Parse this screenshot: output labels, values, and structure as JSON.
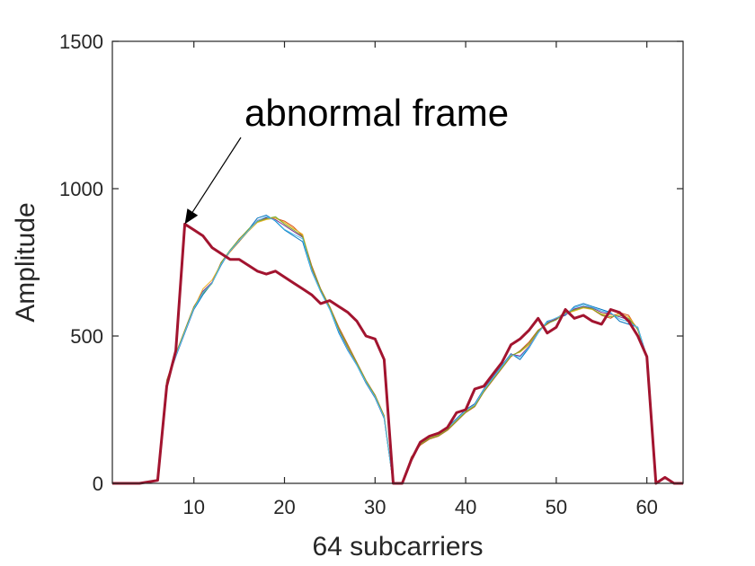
{
  "chart_data": {
    "type": "line",
    "xlabel": "64 subcarriers",
    "ylabel": "Amplitude",
    "xlim": [
      1,
      64
    ],
    "ylim": [
      0,
      1500
    ],
    "xticks": [
      10,
      20,
      30,
      40,
      50,
      60
    ],
    "yticks": [
      0,
      500,
      1000,
      1500
    ],
    "x": [
      1,
      2,
      3,
      4,
      5,
      6,
      7,
      8,
      9,
      10,
      11,
      12,
      13,
      14,
      15,
      16,
      17,
      18,
      19,
      20,
      21,
      22,
      23,
      24,
      25,
      26,
      27,
      28,
      29,
      30,
      31,
      32,
      33,
      34,
      35,
      36,
      37,
      38,
      39,
      40,
      41,
      42,
      43,
      44,
      45,
      46,
      47,
      48,
      49,
      50,
      51,
      52,
      53,
      54,
      55,
      56,
      57,
      58,
      59,
      60,
      61,
      62,
      63,
      64
    ],
    "annotation": {
      "text": "abnormal frame",
      "target_x": 9,
      "target_y": 880
    },
    "series": [
      {
        "color": "#0072BD",
        "width": 1,
        "values": [
          0,
          0,
          0,
          0,
          5,
          10,
          340,
          430,
          510,
          590,
          640,
          680,
          740,
          790,
          820,
          860,
          900,
          910,
          890,
          860,
          840,
          820,
          720,
          650,
          590,
          510,
          450,
          400,
          340,
          290,
          220,
          0,
          0,
          80,
          140,
          160,
          170,
          190,
          220,
          250,
          270,
          320,
          360,
          400,
          440,
          420,
          460,
          510,
          550,
          560,
          570,
          600,
          610,
          600,
          590,
          580,
          550,
          540,
          530,
          430,
          0,
          0,
          0,
          0
        ]
      },
      {
        "color": "#D95319",
        "width": 1,
        "values": [
          0,
          0,
          0,
          0,
          5,
          10,
          350,
          440,
          520,
          600,
          650,
          680,
          750,
          790,
          830,
          860,
          890,
          900,
          900,
          890,
          870,
          840,
          740,
          660,
          600,
          530,
          470,
          410,
          350,
          300,
          230,
          0,
          0,
          90,
          130,
          150,
          160,
          180,
          210,
          240,
          260,
          310,
          350,
          390,
          430,
          450,
          480,
          520,
          540,
          560,
          580,
          590,
          600,
          590,
          570,
          560,
          580,
          570,
          520,
          430,
          0,
          0,
          0,
          0
        ]
      },
      {
        "color": "#EDB120",
        "width": 1,
        "values": [
          0,
          0,
          0,
          0,
          5,
          10,
          345,
          435,
          515,
          595,
          660,
          690,
          745,
          785,
          820,
          855,
          885,
          895,
          900,
          885,
          865,
          845,
          730,
          655,
          595,
          520,
          460,
          405,
          345,
          295,
          225,
          0,
          0,
          85,
          135,
          155,
          165,
          185,
          215,
          245,
          265,
          315,
          355,
          395,
          435,
          445,
          470,
          515,
          545,
          560,
          575,
          585,
          595,
          590,
          575,
          570,
          575,
          565,
          525,
          430,
          0,
          0,
          0,
          0
        ]
      },
      {
        "color": "#7E2F8E",
        "width": 1,
        "values": [
          0,
          0,
          0,
          0,
          5,
          10,
          342,
          432,
          512,
          592,
          652,
          682,
          742,
          788,
          822,
          858,
          892,
          902,
          895,
          875,
          855,
          835,
          725,
          652,
          592,
          518,
          455,
          402,
          342,
          292,
          222,
          0,
          0,
          82,
          138,
          158,
          168,
          188,
          218,
          248,
          268,
          318,
          358,
          398,
          438,
          432,
          465,
          512,
          545,
          558,
          572,
          592,
          600,
          595,
          580,
          575,
          565,
          555,
          527,
          430,
          0,
          0,
          0,
          0
        ]
      },
      {
        "color": "#77AC30",
        "width": 1,
        "values": [
          0,
          0,
          0,
          0,
          5,
          10,
          348,
          438,
          518,
          598,
          645,
          678,
          748,
          792,
          828,
          862,
          888,
          898,
          905,
          880,
          860,
          838,
          735,
          658,
          598,
          525,
          465,
          408,
          348,
          298,
          228,
          0,
          0,
          88,
          132,
          152,
          162,
          182,
          212,
          242,
          262,
          312,
          352,
          392,
          432,
          448,
          475,
          518,
          542,
          555,
          578,
          588,
          598,
          592,
          572,
          565,
          570,
          560,
          522,
          430,
          0,
          0,
          0,
          0
        ]
      },
      {
        "color": "#4DBEEE",
        "width": 1,
        "values": [
          0,
          0,
          0,
          0,
          5,
          10,
          343,
          433,
          513,
          593,
          648,
          679,
          743,
          789,
          823,
          857,
          891,
          905,
          892,
          862,
          845,
          830,
          722,
          650,
          590,
          515,
          452,
          401,
          343,
          293,
          223,
          0,
          0,
          83,
          137,
          157,
          167,
          187,
          217,
          247,
          267,
          317,
          357,
          397,
          437,
          428,
          462,
          510,
          548,
          562,
          574,
          596,
          605,
          597,
          585,
          578,
          558,
          548,
          528,
          430,
          0,
          0,
          0,
          0
        ]
      },
      {
        "color": "#A2142F",
        "width": 3,
        "label": "abnormal frame",
        "values": [
          0,
          0,
          0,
          0,
          5,
          10,
          330,
          450,
          880,
          860,
          840,
          800,
          780,
          760,
          760,
          740,
          720,
          710,
          720,
          700,
          680,
          660,
          640,
          610,
          620,
          600,
          580,
          550,
          500,
          490,
          420,
          0,
          0,
          80,
          140,
          160,
          170,
          190,
          240,
          250,
          320,
          330,
          370,
          410,
          470,
          490,
          520,
          560,
          510,
          530,
          590,
          560,
          570,
          550,
          540,
          590,
          580,
          550,
          500,
          430,
          0,
          20,
          0,
          0
        ]
      }
    ]
  }
}
